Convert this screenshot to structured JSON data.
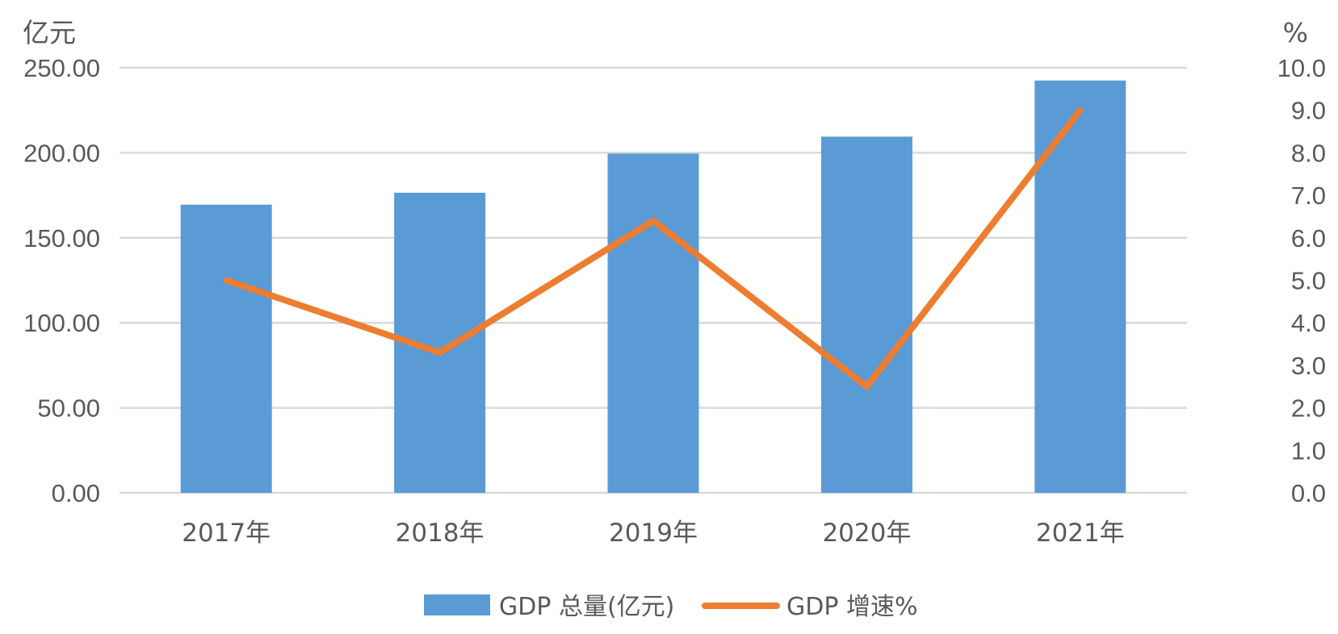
{
  "chart_data": {
    "type": "bar",
    "categories": [
      "2017年",
      "2018年",
      "2019年",
      "2020年",
      "2021年"
    ],
    "series": [
      {
        "name": "GDP 总量(亿元)",
        "kind": "bar",
        "axis": "left",
        "color": "#5B9BD5",
        "values": [
          169.5,
          176.5,
          199.5,
          209.5,
          242.5
        ]
      },
      {
        "name": "GDP 增速%",
        "kind": "line",
        "axis": "right",
        "color": "#ED7D31",
        "values": [
          5.0,
          3.3,
          6.4,
          2.5,
          9.0
        ]
      }
    ],
    "left_axis": {
      "unit": "亿元",
      "ylim": [
        0,
        250
      ],
      "ticks": [
        "0.00",
        "50.00",
        "100.00",
        "150.00",
        "200.00",
        "250.00"
      ]
    },
    "right_axis": {
      "unit": "%",
      "ylim": [
        0,
        10
      ],
      "ticks": [
        "0.0",
        "1.0",
        "2.0",
        "3.0",
        "4.0",
        "5.0",
        "6.0",
        "7.0",
        "8.0",
        "9.0",
        "10.0"
      ]
    },
    "grid": true,
    "legend_position": "bottom"
  }
}
